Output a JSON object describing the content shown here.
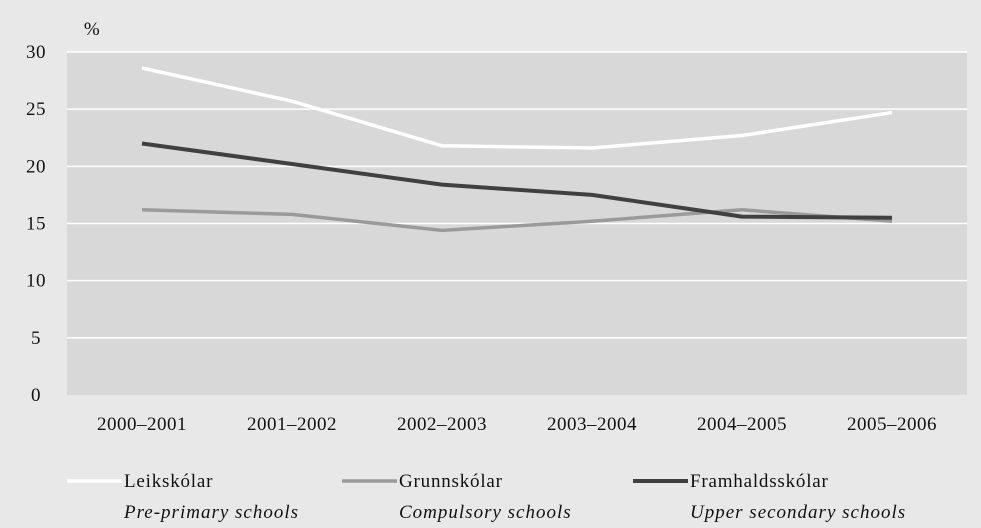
{
  "chart_data": {
    "type": "line",
    "ylabel": "%",
    "ylim": [
      0,
      30
    ],
    "yticks": [
      0,
      5,
      10,
      15,
      20,
      25,
      30
    ],
    "categories": [
      "2000–2001",
      "2001–2002",
      "2002–2003",
      "2003–2004",
      "2004–2005",
      "2005–2006"
    ],
    "grid": true,
    "legend_position": "bottom",
    "series": [
      {
        "name": "Leikskólar",
        "subtitle": "Pre-primary schools",
        "color": "#ffffff",
        "values": [
          28.6,
          25.7,
          21.8,
          21.6,
          22.7,
          24.7
        ]
      },
      {
        "name": "Grunnskólar",
        "subtitle": "Compulsory schools",
        "color": "#9a9a9a",
        "values": [
          16.2,
          15.8,
          14.4,
          15.2,
          16.2,
          15.2
        ]
      },
      {
        "name": "Framhaldsskólar",
        "subtitle": "Upper secondary schools",
        "color": "#404040",
        "values": [
          22.0,
          20.2,
          18.4,
          17.5,
          15.6,
          15.5
        ]
      }
    ]
  }
}
